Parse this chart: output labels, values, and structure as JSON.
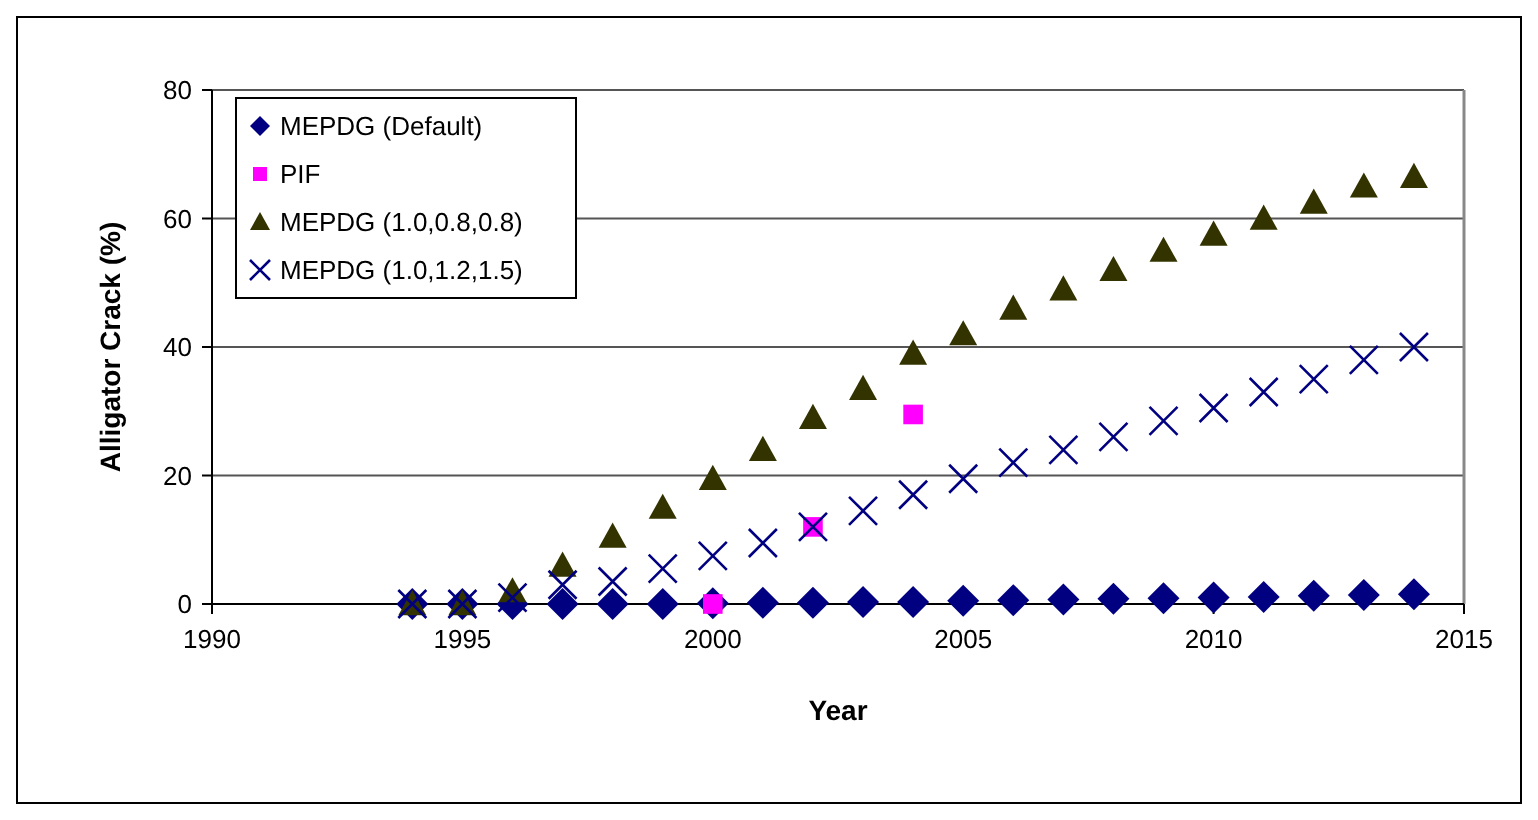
{
  "chart_data": {
    "type": "scatter",
    "xlabel": "Year",
    "ylabel": "Alligator Crack (%)",
    "xlim": [
      1990,
      2015
    ],
    "xticks": [
      1990,
      1995,
      2000,
      2005,
      2010,
      2015
    ],
    "ylim": [
      0,
      80
    ],
    "yticks": [
      0,
      20,
      40,
      60,
      80
    ],
    "grid": "y",
    "legend": "top left",
    "series": [
      {
        "name": "MEPDG (Default)",
        "color": "#000080",
        "marker": "diamond",
        "x": [
          1994,
          1995,
          1996,
          1997,
          1998,
          1999,
          2000,
          2001,
          2002,
          2003,
          2004,
          2005,
          2006,
          2007,
          2008,
          2009,
          2010,
          2011,
          2012,
          2013,
          2014
        ],
        "values": [
          0,
          0,
          0,
          0,
          0,
          0,
          0.1,
          0.2,
          0.2,
          0.3,
          0.3,
          0.5,
          0.6,
          0.7,
          0.8,
          0.9,
          1.0,
          1.1,
          1.3,
          1.4,
          1.5
        ]
      },
      {
        "name": "PIF",
        "color": "#ff00ff",
        "marker": "square",
        "x": [
          2000,
          2002,
          2004
        ],
        "values": [
          0,
          12,
          29.5
        ]
      },
      {
        "name": "MEPDG (1.0,0.8,0.8)",
        "color": "#333300",
        "marker": "triangle",
        "x": [
          1994,
          1995,
          1996,
          1997,
          1998,
          1999,
          2000,
          2001,
          2002,
          2003,
          2004,
          2005,
          2006,
          2007,
          2008,
          2009,
          2010,
          2011,
          2012,
          2013,
          2014
        ],
        "values": [
          0,
          0,
          2,
          6,
          10.5,
          15,
          19.5,
          24,
          29,
          33.5,
          39,
          42,
          46,
          49,
          52,
          55,
          57.5,
          60,
          62.5,
          65,
          66.5
        ]
      },
      {
        "name": "MEPDG (1.0,1.2,1.5)",
        "color": "#000080",
        "marker": "cross",
        "x": [
          1994,
          1995,
          1996,
          1997,
          1998,
          1999,
          2000,
          2001,
          2002,
          2003,
          2004,
          2005,
          2006,
          2007,
          2008,
          2009,
          2010,
          2011,
          2012,
          2013,
          2014
        ],
        "values": [
          0,
          0,
          1,
          3,
          3.5,
          5.5,
          7.5,
          9.5,
          12,
          14.5,
          17,
          19.5,
          22,
          24,
          26,
          28.5,
          30.5,
          33,
          35,
          38,
          40
        ]
      }
    ]
  }
}
